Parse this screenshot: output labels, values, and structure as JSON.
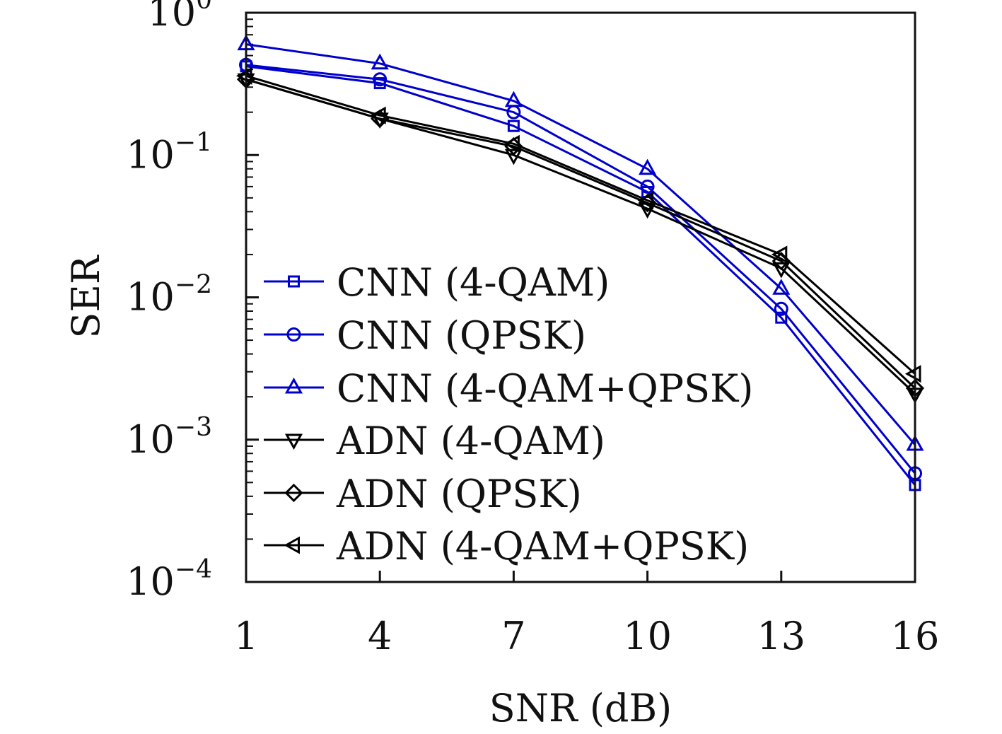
{
  "chart_data": {
    "type": "line",
    "xlabel": "SNR (dB)",
    "ylabel": "SER",
    "yscale": "log",
    "xlim": [
      1,
      16
    ],
    "ylim": [
      0.0001,
      1
    ],
    "x_ticks": [
      "1",
      "4",
      "7",
      "10",
      "13",
      "16"
    ],
    "y_ticks": [
      {
        "base": "10",
        "exp": "0"
      },
      {
        "base": "10",
        "exp": "−1"
      },
      {
        "base": "10",
        "exp": "−2"
      },
      {
        "base": "10",
        "exp": "−3"
      },
      {
        "base": "10",
        "exp": "−4"
      }
    ],
    "grid": false,
    "legend_position": "lower-left",
    "x": [
      1,
      4,
      7,
      10,
      13,
      16
    ],
    "series": [
      {
        "name": "CNN (4-QAM)",
        "color": "#0000cc",
        "marker": "square",
        "values": [
          0.42,
          0.32,
          0.16,
          0.055,
          0.0072,
          0.00048
        ]
      },
      {
        "name": "CNN (QPSK)",
        "color": "#0000cc",
        "marker": "circle",
        "values": [
          0.43,
          0.34,
          0.2,
          0.06,
          0.0083,
          0.00058
        ]
      },
      {
        "name": "CNN (4-QAM+QPSK)",
        "color": "#0000cc",
        "marker": "triangle-up",
        "values": [
          0.6,
          0.44,
          0.24,
          0.08,
          0.0115,
          0.00092
        ]
      },
      {
        "name": "ADN (4-QAM)",
        "color": "#000000",
        "marker": "triangle-down",
        "values": [
          0.34,
          0.18,
          0.1,
          0.042,
          0.016,
          0.0021
        ]
      },
      {
        "name": "ADN (QPSK)",
        "color": "#000000",
        "marker": "diamond",
        "values": [
          0.34,
          0.18,
          0.115,
          0.046,
          0.018,
          0.0023
        ]
      },
      {
        "name": "ADN (4-QAM+QPSK)",
        "color": "#000000",
        "marker": "triangle-left",
        "values": [
          0.36,
          0.19,
          0.12,
          0.048,
          0.02,
          0.0029
        ]
      }
    ]
  }
}
